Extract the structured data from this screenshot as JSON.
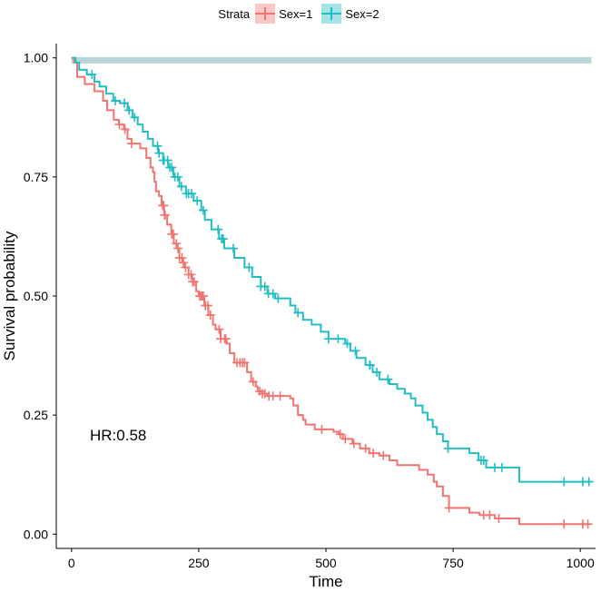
{
  "chart_data": {
    "type": "line",
    "subtype": "kaplan-meier",
    "xlabel": "Time",
    "ylabel": "Survival probability",
    "xlim": [
      -30,
      1030
    ],
    "ylim": [
      -0.03,
      1.03
    ],
    "xticks": [
      "0",
      "250",
      "500",
      "750",
      "1000"
    ],
    "xtick_values": [
      0,
      250,
      500,
      750,
      1000
    ],
    "yticks": [
      "0.00",
      "0.25",
      "0.50",
      "0.75",
      "1.00"
    ],
    "ytick_values": [
      0,
      0.25,
      0.5,
      0.75,
      1.0
    ],
    "grid": false,
    "legend": {
      "title": "Strata",
      "position": "top",
      "entries": [
        "Sex=1",
        "Sex=2"
      ]
    },
    "annotation": "HR:0.58",
    "reference_band": {
      "y": 0.995,
      "x_range": [
        0,
        1022
      ],
      "color": "#b7d4d6"
    },
    "series": [
      {
        "name": "Sex=1",
        "color": "#f07470",
        "steps": [
          [
            0,
            1.0
          ],
          [
            5,
            0.99
          ],
          [
            11,
            0.96
          ],
          [
            26,
            0.945
          ],
          [
            45,
            0.93
          ],
          [
            62,
            0.91
          ],
          [
            70,
            0.89
          ],
          [
            83,
            0.87
          ],
          [
            93,
            0.86
          ],
          [
            103,
            0.85
          ],
          [
            110,
            0.83
          ],
          [
            118,
            0.82
          ],
          [
            135,
            0.81
          ],
          [
            147,
            0.79
          ],
          [
            155,
            0.77
          ],
          [
            160,
            0.76
          ],
          [
            163,
            0.74
          ],
          [
            166,
            0.72
          ],
          [
            172,
            0.71
          ],
          [
            177,
            0.69
          ],
          [
            182,
            0.67
          ],
          [
            188,
            0.65
          ],
          [
            196,
            0.63
          ],
          [
            201,
            0.61
          ],
          [
            207,
            0.6
          ],
          [
            212,
            0.58
          ],
          [
            218,
            0.57
          ],
          [
            222,
            0.56
          ],
          [
            230,
            0.545
          ],
          [
            237,
            0.53
          ],
          [
            245,
            0.51
          ],
          [
            250,
            0.5
          ],
          [
            261,
            0.48
          ],
          [
            269,
            0.46
          ],
          [
            278,
            0.44
          ],
          [
            283,
            0.43
          ],
          [
            293,
            0.41
          ],
          [
            305,
            0.4
          ],
          [
            311,
            0.38
          ],
          [
            320,
            0.36
          ],
          [
            345,
            0.34
          ],
          [
            353,
            0.32
          ],
          [
            362,
            0.31
          ],
          [
            366,
            0.3
          ],
          [
            375,
            0.295
          ],
          [
            385,
            0.29
          ],
          [
            430,
            0.285
          ],
          [
            436,
            0.27
          ],
          [
            445,
            0.25
          ],
          [
            455,
            0.24
          ],
          [
            460,
            0.23
          ],
          [
            478,
            0.22
          ],
          [
            515,
            0.215
          ],
          [
            525,
            0.21
          ],
          [
            533,
            0.2
          ],
          [
            552,
            0.19
          ],
          [
            567,
            0.18
          ],
          [
            585,
            0.17
          ],
          [
            605,
            0.165
          ],
          [
            625,
            0.155
          ],
          [
            640,
            0.145
          ],
          [
            683,
            0.135
          ],
          [
            700,
            0.125
          ],
          [
            712,
            0.11
          ],
          [
            718,
            0.1
          ],
          [
            730,
            0.08
          ],
          [
            742,
            0.055
          ],
          [
            782,
            0.045
          ],
          [
            802,
            0.04
          ],
          [
            832,
            0.033
          ],
          [
            880,
            0.021
          ],
          [
            1020,
            0.021
          ]
        ],
        "censor_times": [
          94,
          105,
          118,
          179,
          180,
          181,
          183,
          184,
          197,
          199,
          200,
          206,
          209,
          212,
          217,
          220,
          224,
          230,
          235,
          238,
          241,
          252,
          254,
          257,
          259,
          263,
          268,
          273,
          290,
          293,
          301,
          303,
          325,
          331,
          336,
          340,
          357,
          370,
          375,
          380,
          388,
          396,
          410,
          492,
          528,
          538,
          555,
          578,
          593,
          613,
          742,
          810,
          822,
          840,
          968,
          1005,
          1015
        ]
      },
      {
        "name": "Sex=2",
        "color": "#22bdc2",
        "steps": [
          [
            0,
            1.0
          ],
          [
            8,
            0.99
          ],
          [
            15,
            0.975
          ],
          [
            30,
            0.965
          ],
          [
            45,
            0.95
          ],
          [
            55,
            0.94
          ],
          [
            68,
            0.925
          ],
          [
            82,
            0.91
          ],
          [
            95,
            0.905
          ],
          [
            110,
            0.89
          ],
          [
            120,
            0.875
          ],
          [
            130,
            0.86
          ],
          [
            140,
            0.845
          ],
          [
            150,
            0.83
          ],
          [
            160,
            0.815
          ],
          [
            170,
            0.8
          ],
          [
            180,
            0.785
          ],
          [
            190,
            0.77
          ],
          [
            200,
            0.75
          ],
          [
            212,
            0.73
          ],
          [
            225,
            0.715
          ],
          [
            240,
            0.7
          ],
          [
            255,
            0.68
          ],
          [
            262,
            0.66
          ],
          [
            275,
            0.64
          ],
          [
            290,
            0.62
          ],
          [
            300,
            0.6
          ],
          [
            320,
            0.58
          ],
          [
            340,
            0.56
          ],
          [
            355,
            0.54
          ],
          [
            372,
            0.52
          ],
          [
            385,
            0.505
          ],
          [
            400,
            0.495
          ],
          [
            430,
            0.48
          ],
          [
            440,
            0.465
          ],
          [
            455,
            0.45
          ],
          [
            472,
            0.44
          ],
          [
            490,
            0.425
          ],
          [
            505,
            0.41
          ],
          [
            538,
            0.4
          ],
          [
            548,
            0.385
          ],
          [
            560,
            0.37
          ],
          [
            578,
            0.355
          ],
          [
            592,
            0.34
          ],
          [
            605,
            0.325
          ],
          [
            625,
            0.315
          ],
          [
            640,
            0.305
          ],
          [
            655,
            0.295
          ],
          [
            667,
            0.285
          ],
          [
            676,
            0.27
          ],
          [
            690,
            0.255
          ],
          [
            700,
            0.24
          ],
          [
            710,
            0.225
          ],
          [
            718,
            0.21
          ],
          [
            730,
            0.195
          ],
          [
            740,
            0.18
          ],
          [
            782,
            0.17
          ],
          [
            800,
            0.155
          ],
          [
            815,
            0.14
          ],
          [
            880,
            0.11
          ],
          [
            1020,
            0.11
          ]
        ],
        "censor_times": [
          40,
          86,
          104,
          113,
          124,
          169,
          172,
          180,
          182,
          189,
          193,
          197,
          203,
          209,
          216,
          226,
          230,
          236,
          247,
          259,
          288,
          295,
          298,
          318,
          349,
          372,
          380,
          387,
          396,
          406,
          445,
          505,
          524,
          542,
          558,
          586,
          587,
          600,
          622,
          740,
          805,
          810,
          832,
          846,
          968,
          1005,
          1017
        ]
      }
    ]
  }
}
